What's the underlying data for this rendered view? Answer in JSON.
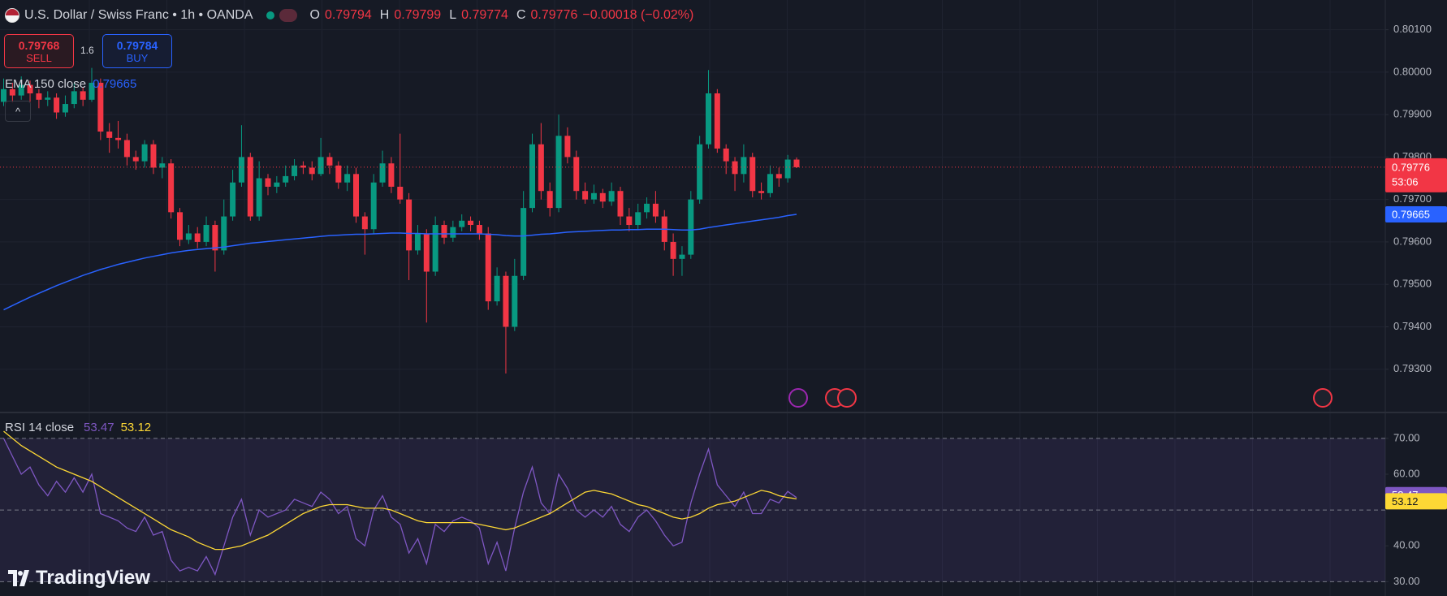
{
  "chart_data": [
    {
      "type": "candlestick",
      "title": "U.S. Dollar / Swiss Franc • 1h • OANDA",
      "ohlc_labels": [
        "O",
        "H",
        "L",
        "C"
      ],
      "change": "−0.00018 (−0.02%)",
      "sell_price": 0.79768,
      "sell": "SELL",
      "spread": 1.6,
      "buy_price": 0.79784,
      "buy": "BUY",
      "countdown": "53:06",
      "branding": "TradingView",
      "up_color": "#089981",
      "down_color": "#f23645",
      "ylim": [
        0.792,
        0.8017
      ],
      "yticks": [
        {
          "value": 0.793,
          "label": "0.79300"
        },
        {
          "value": 0.794,
          "label": "0.79400"
        },
        {
          "value": 0.795,
          "label": "0.79500"
        },
        {
          "value": 0.796,
          "label": "0.79600"
        },
        {
          "value": 0.797,
          "label": "0.79700"
        },
        {
          "value": 0.798,
          "label": "0.79800"
        },
        {
          "value": 0.799,
          "label": "0.79900"
        },
        {
          "value": 0.8,
          "label": "0.80000"
        },
        {
          "value": 0.801,
          "label": "0.80100"
        }
      ],
      "grid": true,
      "open": [
        0.7993,
        0.7996,
        0.79945,
        0.7997,
        0.7995,
        0.79935,
        0.7994,
        0.79905,
        0.79925,
        0.79955,
        0.79935,
        0.79975,
        0.7986,
        0.79845,
        0.7984,
        0.798,
        0.7979,
        0.7983,
        0.79775,
        0.79785,
        0.7967,
        0.79605,
        0.7962,
        0.796,
        0.7964,
        0.7958,
        0.7966,
        0.7974,
        0.798,
        0.7966,
        0.7975,
        0.7973,
        0.7974,
        0.79755,
        0.7978,
        0.79775,
        0.7976,
        0.798,
        0.7978,
        0.7974,
        0.7976,
        0.7966,
        0.7963,
        0.7974,
        0.79785,
        0.7973,
        0.797,
        0.7958,
        0.7962,
        0.7953,
        0.7964,
        0.7961,
        0.79635,
        0.7965,
        0.7964,
        0.7962,
        0.7946,
        0.7952,
        0.794,
        0.7952,
        0.7968,
        0.7983,
        0.7972,
        0.7968,
        0.7985,
        0.798,
        0.7972,
        0.797,
        0.79715,
        0.79695,
        0.7972,
        0.7966,
        0.7964,
        0.7967,
        0.7969,
        0.7966,
        0.796,
        0.7956,
        0.7957,
        0.797,
        0.7983,
        0.7995,
        0.7982,
        0.7979,
        0.7976,
        0.798,
        0.7972,
        0.79715,
        0.7976,
        0.7975,
        0.79794
      ],
      "high": [
        0.79985,
        0.79975,
        0.7999,
        0.7998,
        0.7996,
        0.79955,
        0.7995,
        0.79945,
        0.79975,
        0.79965,
        0.8001,
        0.79985,
        0.7988,
        0.79885,
        0.79855,
        0.79815,
        0.7984,
        0.7984,
        0.798,
        0.79795,
        0.7968,
        0.7964,
        0.79635,
        0.7966,
        0.7965,
        0.797,
        0.7977,
        0.79875,
        0.7981,
        0.7979,
        0.7976,
        0.79755,
        0.7978,
        0.79795,
        0.7979,
        0.7979,
        0.79845,
        0.7981,
        0.7979,
        0.7978,
        0.79775,
        0.7967,
        0.7976,
        0.79815,
        0.798,
        0.79855,
        0.79715,
        0.7964,
        0.7963,
        0.7966,
        0.7965,
        0.7965,
        0.79665,
        0.7966,
        0.7965,
        0.79635,
        0.7954,
        0.7953,
        0.7956,
        0.7972,
        0.79855,
        0.7988,
        0.7974,
        0.799,
        0.7987,
        0.79815,
        0.7974,
        0.79735,
        0.79725,
        0.7974,
        0.7973,
        0.7968,
        0.7969,
        0.79705,
        0.7972,
        0.79675,
        0.7962,
        0.7959,
        0.7972,
        0.7985,
        0.80005,
        0.7996,
        0.7983,
        0.798,
        0.7983,
        0.7981,
        0.7974,
        0.7978,
        0.79775,
        0.79805,
        0.79799
      ],
      "low": [
        0.7992,
        0.7993,
        0.79935,
        0.7993,
        0.79915,
        0.7992,
        0.7989,
        0.79895,
        0.79915,
        0.7992,
        0.7993,
        0.7984,
        0.7981,
        0.7982,
        0.7978,
        0.7977,
        0.79775,
        0.7976,
        0.7975,
        0.79655,
        0.7959,
        0.79595,
        0.79585,
        0.7959,
        0.7953,
        0.7957,
        0.7965,
        0.7973,
        0.7965,
        0.7965,
        0.7971,
        0.79715,
        0.7973,
        0.79745,
        0.7976,
        0.79745,
        0.79755,
        0.7976,
        0.79725,
        0.7972,
        0.79645,
        0.7957,
        0.7962,
        0.7973,
        0.79715,
        0.7969,
        0.7951,
        0.7957,
        0.7941,
        0.7952,
        0.79595,
        0.796,
        0.79625,
        0.79625,
        0.79605,
        0.7944,
        0.7945,
        0.7929,
        0.7939,
        0.7951,
        0.7967,
        0.797,
        0.7966,
        0.7967,
        0.79785,
        0.797,
        0.7969,
        0.7969,
        0.7968,
        0.79685,
        0.7964,
        0.79625,
        0.7963,
        0.79655,
        0.79645,
        0.7958,
        0.7952,
        0.7952,
        0.7956,
        0.7969,
        0.7982,
        0.7981,
        0.7976,
        0.7972,
        0.7974,
        0.79705,
        0.797,
        0.79705,
        0.7973,
        0.7974,
        0.79774
      ],
      "close": [
        0.7996,
        0.79945,
        0.7997,
        0.7995,
        0.79935,
        0.7994,
        0.79905,
        0.79925,
        0.79955,
        0.79935,
        0.79975,
        0.7986,
        0.79845,
        0.7984,
        0.798,
        0.7979,
        0.7983,
        0.79775,
        0.79785,
        0.7967,
        0.79605,
        0.7962,
        0.796,
        0.7964,
        0.7958,
        0.7966,
        0.7974,
        0.798,
        0.7966,
        0.7975,
        0.7973,
        0.7974,
        0.79755,
        0.7978,
        0.79775,
        0.7976,
        0.798,
        0.7978,
        0.7974,
        0.7976,
        0.7966,
        0.7963,
        0.7974,
        0.79785,
        0.7973,
        0.797,
        0.7958,
        0.7962,
        0.7953,
        0.7964,
        0.7961,
        0.79635,
        0.7965,
        0.7964,
        0.7962,
        0.7946,
        0.7952,
        0.794,
        0.7952,
        0.7968,
        0.7983,
        0.7972,
        0.7968,
        0.7985,
        0.798,
        0.7972,
        0.797,
        0.79715,
        0.79695,
        0.7972,
        0.7966,
        0.7964,
        0.7967,
        0.7969,
        0.7966,
        0.796,
        0.7956,
        0.7957,
        0.797,
        0.7983,
        0.7995,
        0.7982,
        0.7979,
        0.7976,
        0.798,
        0.7972,
        0.79715,
        0.7976,
        0.7975,
        0.79794,
        0.79776
      ],
      "overlays": [
        {
          "name": "EMA 150 close",
          "color": "#2962ff",
          "values": [
            0.7944,
            0.7945,
            0.7946,
            0.7947,
            0.79479,
            0.79488,
            0.79497,
            0.79505,
            0.79513,
            0.79521,
            0.79528,
            0.79535,
            0.79541,
            0.79547,
            0.79552,
            0.79557,
            0.79562,
            0.79566,
            0.7957,
            0.79574,
            0.79577,
            0.7958,
            0.79582,
            0.79584,
            0.79586,
            0.79588,
            0.79591,
            0.79594,
            0.79597,
            0.79599,
            0.79601,
            0.79603,
            0.79605,
            0.79607,
            0.79609,
            0.79611,
            0.79613,
            0.79615,
            0.79616,
            0.79617,
            0.79618,
            0.79618,
            0.79619,
            0.7962,
            0.79621,
            0.79621,
            0.7962,
            0.7962,
            0.79619,
            0.79619,
            0.79619,
            0.79619,
            0.79619,
            0.79619,
            0.79619,
            0.79618,
            0.79617,
            0.79615,
            0.79614,
            0.79614,
            0.79616,
            0.79618,
            0.79619,
            0.79621,
            0.79623,
            0.79624,
            0.79625,
            0.79626,
            0.79627,
            0.79628,
            0.79628,
            0.79629,
            0.79629,
            0.7963,
            0.7963,
            0.7963,
            0.79629,
            0.79628,
            0.79628,
            0.7963,
            0.79634,
            0.79637,
            0.7964,
            0.79643,
            0.79646,
            0.79649,
            0.79652,
            0.79655,
            0.79658,
            0.79662,
            0.79665
          ]
        }
      ]
    },
    {
      "type": "line",
      "title": "RSI 14 close",
      "ylim": [
        26,
        77
      ],
      "yticks": [
        {
          "value": 30,
          "label": "30.00"
        },
        {
          "value": 40,
          "label": "40.00"
        },
        {
          "value": 60,
          "label": "60.00"
        },
        {
          "value": 70,
          "label": "70.00"
        }
      ],
      "levels": [
        70,
        50,
        30
      ],
      "series": [
        {
          "color": "#7e57c2",
          "values": [
            70,
            65,
            60,
            62,
            57,
            54,
            58,
            55,
            59,
            55,
            60,
            49,
            48,
            47,
            45,
            44,
            48,
            43,
            44,
            36,
            33,
            34,
            33,
            37,
            32,
            40,
            48,
            53,
            43,
            50,
            48,
            49,
            50,
            53,
            52,
            51,
            55,
            53,
            49,
            51,
            42,
            40,
            50,
            54,
            48,
            46,
            38,
            42,
            35,
            46,
            44,
            47,
            48,
            47,
            45,
            35,
            41,
            33,
            45,
            55,
            62,
            52,
            49,
            60,
            56,
            50,
            48,
            50,
            48,
            51,
            46,
            44,
            48,
            50,
            47,
            43,
            40,
            41,
            52,
            60,
            67,
            57,
            54,
            51,
            55,
            49,
            49,
            53,
            52,
            55.2,
            53.47
          ]
        },
        {
          "color": "#fdd835",
          "values": [
            72,
            70,
            68,
            66.5,
            65,
            63.5,
            62,
            61,
            60,
            59,
            58,
            56.5,
            55,
            53.5,
            52,
            50.5,
            49,
            47.5,
            46,
            44.5,
            43.5,
            42.5,
            41,
            40,
            39,
            39,
            39.5,
            40,
            41,
            42,
            43,
            44.5,
            46,
            47.5,
            49,
            50,
            51,
            51.5,
            51.5,
            51.5,
            51,
            50.5,
            50.5,
            50.5,
            50,
            49,
            48,
            47,
            46.5,
            46.5,
            46.5,
            46.5,
            46.5,
            46.5,
            46,
            45.5,
            45,
            44.5,
            45,
            46,
            47,
            48,
            49,
            50.5,
            52,
            53.5,
            55,
            55.5,
            55,
            54.5,
            53.5,
            52.5,
            51.5,
            51,
            50,
            49,
            48,
            47.5,
            48,
            49,
            50.5,
            51.5,
            52,
            52.5,
            53.5,
            54.5,
            55.5,
            55,
            54,
            53.5,
            53.12
          ]
        }
      ]
    }
  ]
}
